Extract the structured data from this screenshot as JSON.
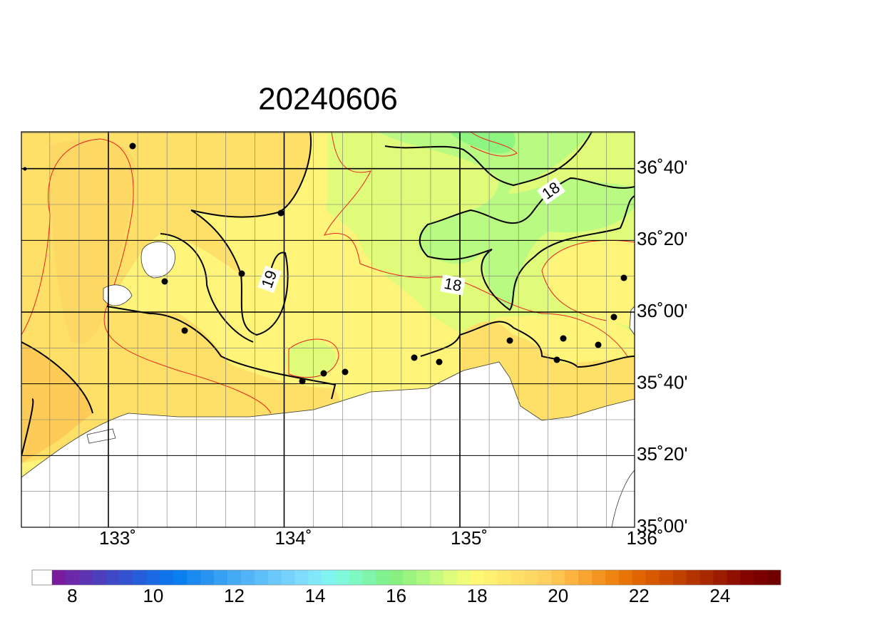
{
  "title": "20240606",
  "x_axis": {
    "ticks": [
      "133˚",
      "134˚",
      "135˚",
      "136˚"
    ]
  },
  "y_axis": {
    "ticks": [
      "35˚00'",
      "35˚20'",
      "35˚40'",
      "36˚00'",
      "36˚20'",
      "36˚40'"
    ]
  },
  "contour_labels": [
    "19",
    "18",
    "18"
  ],
  "colorbar": {
    "labels": [
      8,
      10,
      12,
      14,
      16,
      18,
      20,
      22,
      24
    ],
    "colors": [
      "#7a1b9e",
      "#6b28a8",
      "#5c34b2",
      "#4d3ebc",
      "#3f48c6",
      "#3252d0",
      "#265ddb",
      "#1a68e4",
      "#0f74ec",
      "#0a80f0",
      "#1a8af0",
      "#2894f0",
      "#36a0f2",
      "#44aaf4",
      "#52b4f6",
      "#5ebef8",
      "#6ac8fa",
      "#76d2fc",
      "#80dcfe",
      "#80e8f8",
      "#80f4f0",
      "#80f8dc",
      "#80f8c4",
      "#80f4a8",
      "#80f290",
      "#88f080",
      "#9af480",
      "#aef882",
      "#c4fa80",
      "#dcfc7c",
      "#f0fc78",
      "#fef872",
      "#fef070",
      "#fee86c",
      "#fee068",
      "#fed864",
      "#fed060",
      "#fdc450",
      "#fcb440",
      "#f8a430",
      "#f49420",
      "#f08410",
      "#e87408",
      "#e06400",
      "#d85800",
      "#cc4c00",
      "#c04000",
      "#b43400",
      "#a82800",
      "#9c1c00",
      "#901000",
      "#840400",
      "#7a0000",
      "#700000"
    ]
  }
}
